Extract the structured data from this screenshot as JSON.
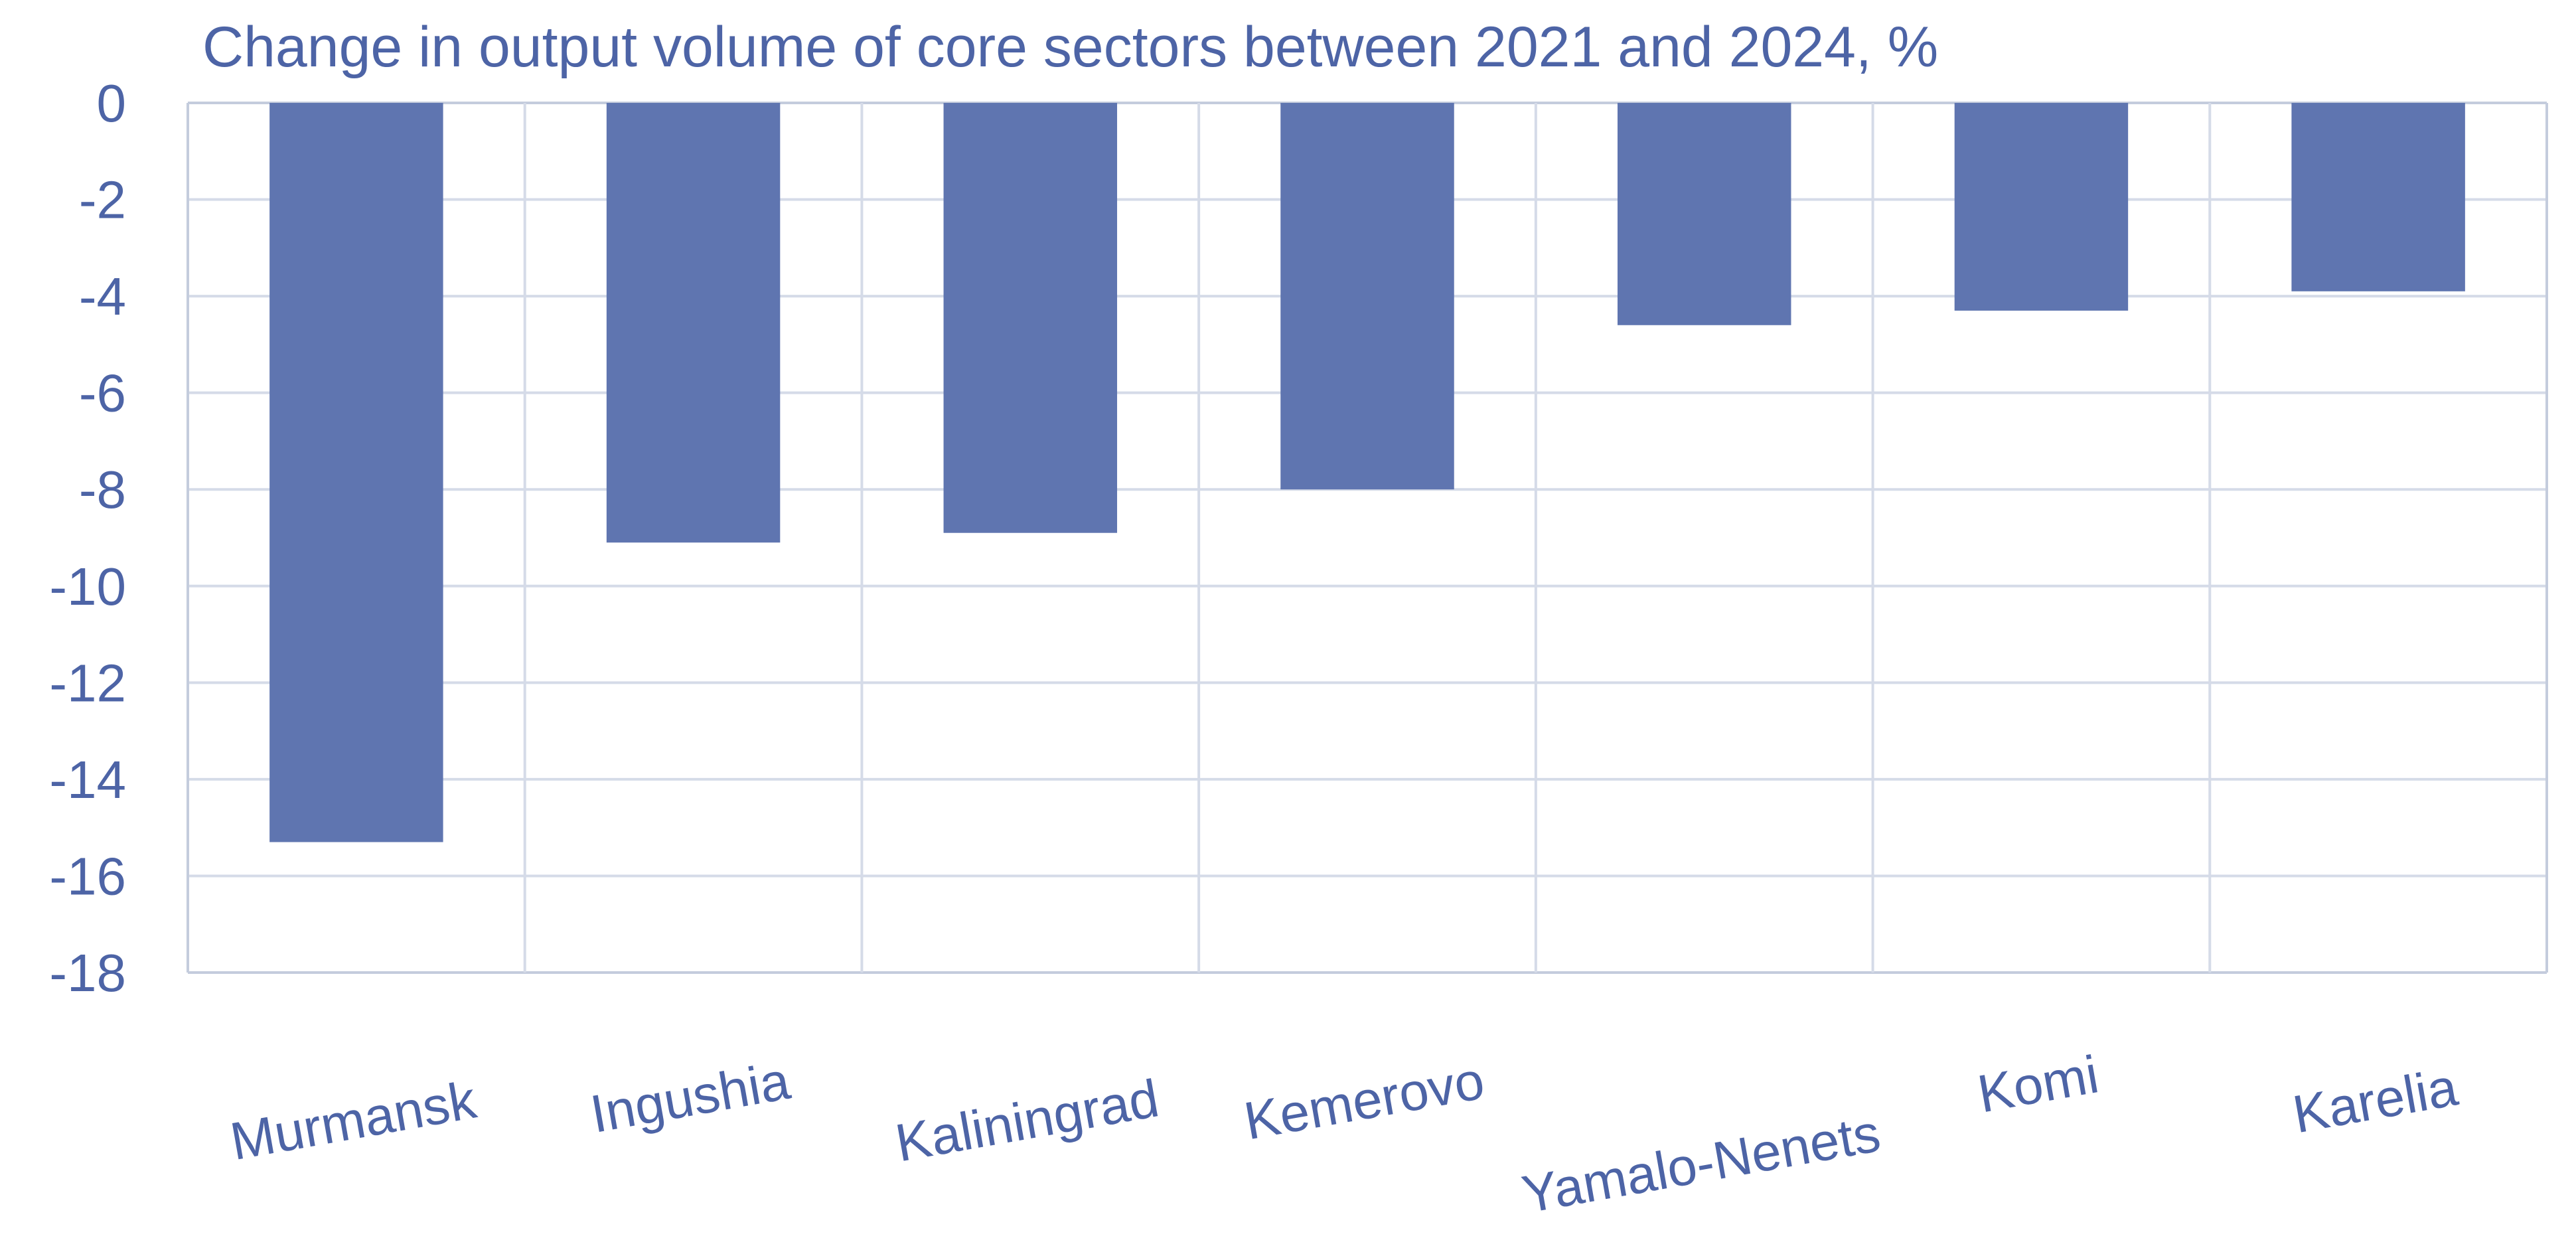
{
  "colors": {
    "bar": "#5f75b0",
    "text": "#4d64a6",
    "grid": "#d5dbe8",
    "axis": "#c4ccdd"
  },
  "chart_data": {
    "type": "bar",
    "title": "Change in output volume of core sectors between 2021 and 2024, %",
    "xlabel": "",
    "ylabel": "",
    "categories": [
      "Murmansk",
      "Ingushia",
      "Kaliningrad",
      "Kemerovo",
      "Yamalo-Nenets",
      "Komi",
      "Karelia"
    ],
    "values": [
      -15.3,
      -9.1,
      -8.9,
      -8.0,
      -4.6,
      -4.3,
      -3.9
    ],
    "ylim": [
      -18,
      0
    ],
    "yticks": [
      0,
      -2,
      -4,
      -6,
      -8,
      -10,
      -12,
      -14,
      -16,
      -18
    ],
    "ytick_labels": [
      "0",
      "-2",
      "-4",
      "-6",
      "-8",
      "-10",
      "-12",
      "-14",
      "-16",
      "-18"
    ],
    "grid": true,
    "legend": "none"
  }
}
